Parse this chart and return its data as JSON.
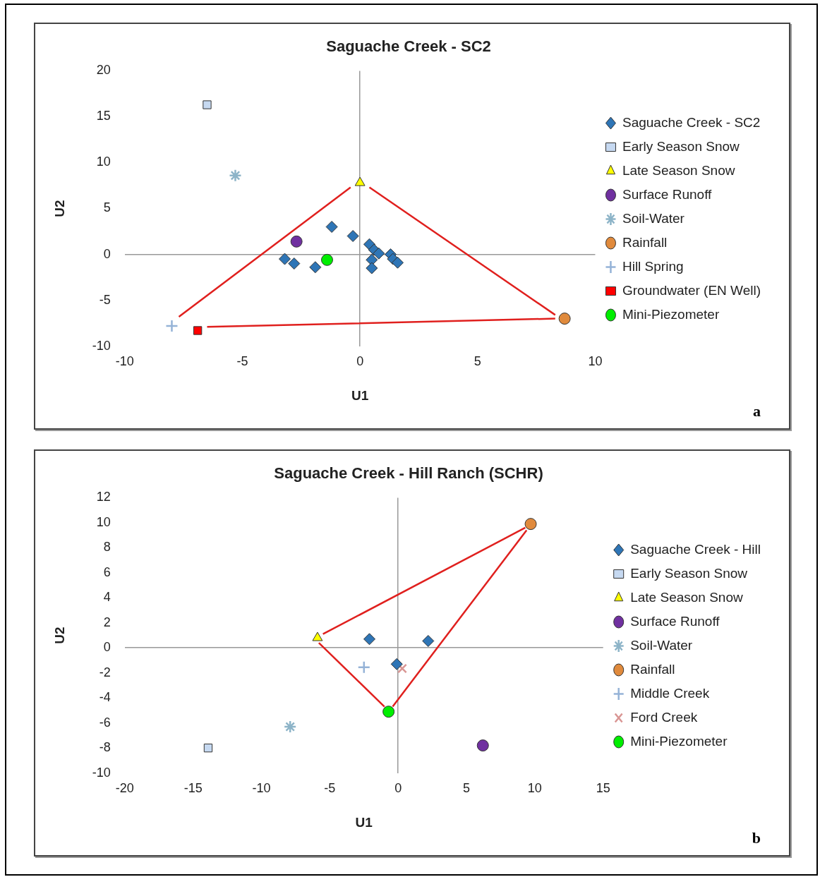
{
  "chart_data": [
    {
      "type": "scatter",
      "title": "Saguache Creek - SC2",
      "xlabel": "U1",
      "ylabel": "U2",
      "xlim": [
        -10,
        10
      ],
      "xticks": [
        -10,
        -5,
        0,
        5,
        10
      ],
      "ylim": [
        -10,
        20
      ],
      "yticks": [
        -10,
        -5,
        0,
        5,
        10,
        15,
        20
      ],
      "legend": "right",
      "annotations": [
        "a"
      ],
      "series": [
        {
          "name": "Saguache Creek - SC2",
          "color": "#2e75b6",
          "marker": "diamond",
          "x": [
            -3.2,
            -2.8,
            -1.9,
            -1.2,
            -0.3,
            0.4,
            0.6,
            0.8,
            0.5,
            0.5,
            1.3,
            1.4,
            1.6
          ],
          "values": [
            -0.5,
            -1,
            -1.4,
            3,
            2,
            1.1,
            0.5,
            0.1,
            -0.6,
            -1.5,
            0,
            -0.5,
            -0.9
          ]
        },
        {
          "name": "Early Season Snow",
          "color": "#c6d9f1",
          "marker": "square",
          "x": [
            -6.5
          ],
          "values": [
            16.3
          ]
        },
        {
          "name": "Late Season Snow",
          "color": "#ffff00",
          "marker": "triangle",
          "x": [
            0
          ],
          "values": [
            7.8
          ]
        },
        {
          "name": "Surface Runoff",
          "color": "#7030a0",
          "marker": "circle",
          "x": [
            -2.7
          ],
          "values": [
            1.4
          ]
        },
        {
          "name": "Soil-Water",
          "color": "#8db4c8",
          "marker": "cross",
          "x": [
            -5.3
          ],
          "values": [
            8.6
          ]
        },
        {
          "name": "Rainfall",
          "color": "#e08a3c",
          "marker": "circle",
          "x": [
            8.7
          ],
          "values": [
            -7
          ]
        },
        {
          "name": "Hill Spring",
          "color": "#95b3d7",
          "marker": "plus",
          "x": [
            -8
          ],
          "values": [
            -7.8
          ]
        },
        {
          "name": "Groundwater (EN Well)",
          "color": "#ff0000",
          "marker": "square",
          "x": [
            -6.9
          ],
          "values": [
            -8.3
          ]
        },
        {
          "name": "Mini-Piezometer",
          "color": "#00ee00",
          "marker": "circle",
          "x": [
            -1.4
          ],
          "values": [
            -0.6
          ]
        },
        {
          "type": "line",
          "color": "#e0201e",
          "marker": "none",
          "x": [
            -7.7,
            -0.4,
            null,
            0.4,
            8.3,
            null,
            -6.5,
            8.3
          ],
          "values": [
            -6.8,
            7.3,
            null,
            7.3,
            -6.6,
            null,
            -7.9,
            -7.0
          ]
        }
      ]
    },
    {
      "type": "scatter",
      "title": "Saguache Creek - Hill Ranch (SCHR)",
      "xlabel": "U1",
      "ylabel": "U2",
      "xlim": [
        -20,
        15
      ],
      "xticks": [
        -20,
        -15,
        -10,
        -5,
        0,
        5,
        10,
        15
      ],
      "ylim": [
        -10,
        12
      ],
      "yticks": [
        -10,
        -8,
        -6,
        -4,
        -2,
        0,
        2,
        4,
        6,
        8,
        10,
        12
      ],
      "legend": "right",
      "annotations": [
        "b"
      ],
      "series": [
        {
          "name": "Saguache Creek - Hill",
          "color": "#2e75b6",
          "marker": "diamond",
          "x": [
            -2.1,
            2.2,
            -0.1
          ],
          "values": [
            0.7,
            0.55,
            -1.3
          ]
        },
        {
          "name": "Early Season Snow",
          "color": "#c6d9f1",
          "marker": "square",
          "x": [
            -13.9
          ],
          "values": [
            -8
          ]
        },
        {
          "name": "Late Season Snow",
          "color": "#ffff00",
          "marker": "triangle",
          "x": [
            -5.9
          ],
          "values": [
            0.8
          ]
        },
        {
          "name": "Surface Runoff",
          "color": "#7030a0",
          "marker": "circle",
          "x": [
            6.2
          ],
          "values": [
            -7.8
          ]
        },
        {
          "name": "Soil-Water",
          "color": "#8db4c8",
          "marker": "cross",
          "x": [
            -7.9
          ],
          "values": [
            -6.3
          ]
        },
        {
          "name": "Rainfall",
          "color": "#e08a3c",
          "marker": "circle",
          "x": [
            9.7
          ],
          "values": [
            9.9
          ]
        },
        {
          "name": "Middle Creek",
          "color": "#95b3d7",
          "marker": "plus",
          "x": [
            -2.5
          ],
          "values": [
            -1.55
          ]
        },
        {
          "name": "Ford Creek",
          "color": "#d99694",
          "marker": "x",
          "x": [
            0.3
          ],
          "values": [
            -1.65
          ]
        },
        {
          "name": "Mini-Piezometer",
          "color": "#00ee00",
          "marker": "circle",
          "x": [
            -0.7
          ],
          "values": [
            -5.1
          ]
        },
        {
          "type": "line",
          "color": "#e0201e",
          "marker": "none",
          "x": [
            -5.5,
            9.3,
            null,
            9.4,
            -0.4,
            null,
            -1,
            -5.8
          ],
          "values": [
            1.1,
            9.6,
            null,
            9.4,
            -4.7,
            null,
            -4.7,
            0.4
          ]
        }
      ]
    }
  ]
}
